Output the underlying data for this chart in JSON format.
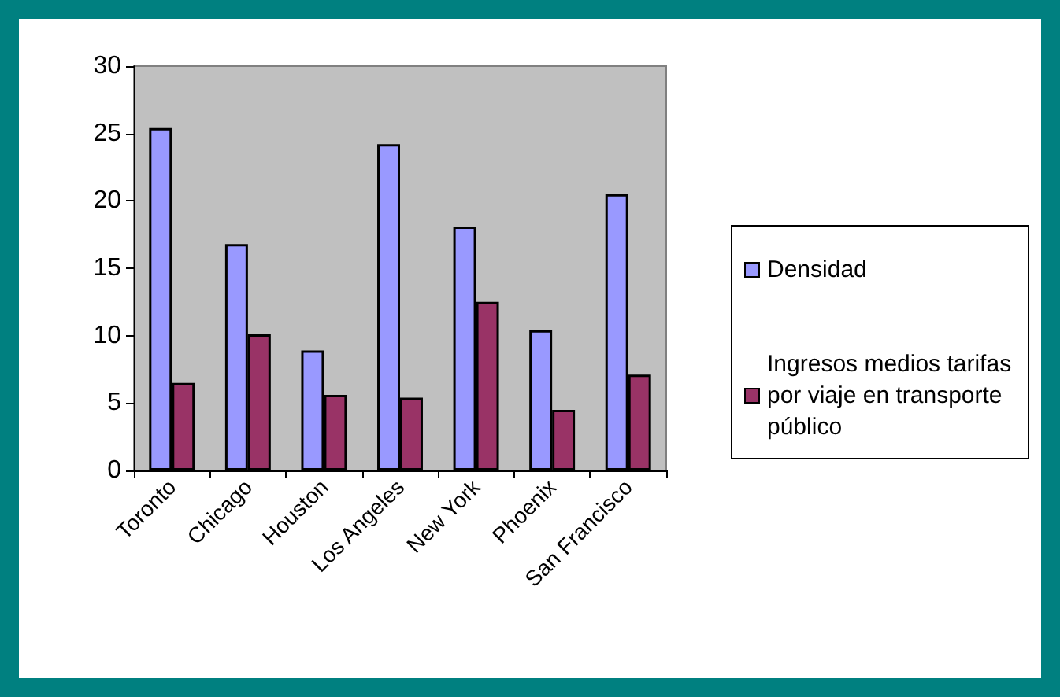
{
  "chart_data": {
    "type": "bar",
    "categories": [
      "Toronto",
      "Chicago",
      "Houston",
      "Los Angeles",
      "New York",
      "Phoenix",
      "San Francisco"
    ],
    "series": [
      {
        "name": "Densidad",
        "color": "#9999ff",
        "values": [
          25.4,
          16.8,
          8.9,
          24.2,
          18.1,
          10.4,
          20.5
        ]
      },
      {
        "name": "Ingresos medios tarifas por viaje en transporte público",
        "color": "#993366",
        "values": [
          6.5,
          10.1,
          5.6,
          5.4,
          12.5,
          4.5,
          7.1
        ]
      }
    ],
    "ylim": [
      0,
      30
    ],
    "yticks": [
      0,
      5,
      10,
      15,
      20,
      25,
      30
    ],
    "grid": false,
    "legend": "right"
  }
}
